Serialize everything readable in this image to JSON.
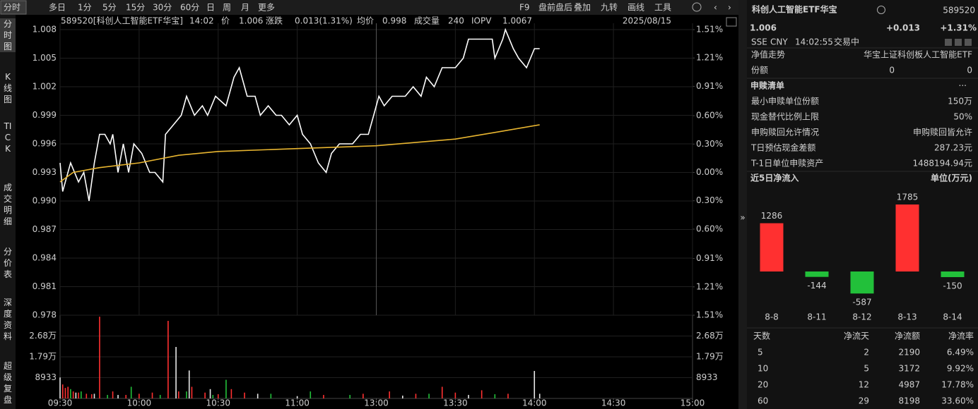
{
  "toolbar": {
    "tabs": [
      "分时",
      "多日",
      "1分",
      "5分",
      "15分",
      "30分",
      "60分",
      "日",
      "周",
      "月",
      "更多"
    ],
    "tools": [
      "F9",
      "盘前盘后",
      "叠加",
      "九转",
      "画线",
      "工具"
    ]
  },
  "sidebar": [
    "分时图",
    "K线图",
    "TICK",
    "成交明细",
    "分价表",
    "深度资料",
    "超级复盘"
  ],
  "quote_bar": {
    "code_name": "589520[科创人工智能ETF华宝]",
    "time": "14:02",
    "price_label": "价",
    "price": "1.006",
    "change_label": "涨跌",
    "change": "0.013(1.31%)",
    "avg_label": "均价",
    "avg": "0.998",
    "volume_label": "成交量",
    "volume": "240",
    "iopv_label": "IOPV",
    "iopv": "1.0067",
    "date": "2025/08/15"
  },
  "chart_data": [
    {
      "type": "line",
      "xlim": [
        0,
        240
      ],
      "ylim": [
        0.978,
        1.008
      ],
      "grid": true,
      "xticks": [
        {
          "value": 0,
          "label": "09:30"
        },
        {
          "value": 30,
          "label": "10:00"
        },
        {
          "value": 60,
          "label": "10:30"
        },
        {
          "value": 90,
          "label": "11:00"
        },
        {
          "value": 120,
          "label": "13:00"
        },
        {
          "value": 150,
          "label": "13:30"
        },
        {
          "value": 180,
          "label": "14:00"
        },
        {
          "value": 210,
          "label": "14:30"
        },
        {
          "value": 240,
          "label": "15:00"
        }
      ],
      "yticks": [
        1.008,
        1.005,
        1.002,
        0.999,
        0.996,
        0.993,
        {
          "value": 0.99,
          "label": "0.990"
        },
        0.987,
        0.984,
        0.981,
        0.978
      ],
      "y2lim": [
        -1.51,
        1.51
      ],
      "y2ticks": [
        {
          "value": 1.51,
          "label": "1.51%"
        },
        {
          "value": 1.21,
          "label": "1.21%"
        },
        {
          "value": 0.91,
          "label": "0.91%"
        },
        {
          "value": 0.6,
          "label": "0.60%"
        },
        {
          "value": 0.3,
          "label": "0.30%"
        },
        {
          "value": 0,
          "label": "0.00%"
        },
        {
          "value": -0.3,
          "label": "0.30%"
        },
        {
          "value": -0.6,
          "label": "0.60%"
        },
        {
          "value": -0.91,
          "label": "0.91%"
        },
        {
          "value": -1.21,
          "label": "1.21%"
        },
        {
          "value": -1.51,
          "label": "1.51%"
        }
      ],
      "up_color": "#ff4040",
      "down_color": "#2fc12f",
      "flat_color": "#bbbbbb",
      "series": [
        {
          "color": "#ffffff",
          "x": [
            0,
            1,
            4,
            7,
            9,
            11,
            13,
            15,
            17,
            19,
            20,
            22,
            24,
            26,
            28,
            31,
            34,
            36,
            39,
            40,
            43,
            46,
            48,
            51,
            54,
            56,
            59,
            63,
            66,
            68,
            71,
            74,
            76,
            79,
            82,
            84,
            87,
            90,
            92,
            95,
            98,
            101,
            103,
            106,
            109,
            111,
            114,
            117,
            119,
            121,
            123,
            126,
            129,
            131,
            134,
            137,
            139,
            142,
            145,
            147,
            150,
            153,
            155,
            158,
            161,
            164,
            165,
            168,
            169,
            172,
            174,
            177,
            180,
            182
          ],
          "values": [
            0.994,
            0.991,
            0.994,
            0.992,
            0.993,
            0.99,
            0.994,
            0.997,
            0.997,
            0.996,
            0.997,
            0.993,
            0.996,
            0.993,
            0.996,
            0.995,
            0.993,
            0.993,
            0.992,
            0.997,
            0.998,
            0.999,
            1.001,
            0.999,
            1.0,
            0.999,
            1.001,
            1.0,
            1.003,
            1.004,
            1.001,
            1.001,
            0.999,
            1.0,
            0.999,
            0.999,
            0.998,
            0.999,
            0.997,
            0.996,
            0.994,
            0.993,
            0.995,
            0.996,
            0.996,
            0.996,
            0.997,
            0.997,
            0.999,
            1.001,
            1.0,
            1.001,
            1.001,
            1.001,
            1.002,
            1.001,
            1.003,
            1.002,
            1.004,
            1.004,
            1.004,
            1.005,
            1.007,
            1.007,
            1.007,
            1.007,
            1.005,
            1.007,
            1.008,
            1.006,
            1.005,
            1.004,
            1.006,
            1.006
          ]
        },
        {
          "color": "#e8b530",
          "x": [
            0,
            5,
            15,
            30,
            45,
            60,
            90,
            120,
            150,
            165,
            182
          ],
          "values": [
            0.992,
            0.993,
            0.9935,
            0.994,
            0.9948,
            0.9952,
            0.9955,
            0.9958,
            0.9965,
            0.9972,
            0.998
          ]
        }
      ]
    },
    {
      "type": "bar",
      "xlim": [
        0,
        240
      ],
      "ylim": [
        0,
        35732
      ],
      "xticks": [
        {
          "value": 0,
          "label": "09:30"
        },
        {
          "value": 30,
          "label": "10:00"
        },
        {
          "value": 60,
          "label": "10:30"
        },
        {
          "value": 90,
          "label": "11:00"
        },
        {
          "value": 120,
          "label": "13:00"
        },
        {
          "value": 150,
          "label": "13:30"
        },
        {
          "value": 180,
          "label": "14:00"
        },
        {
          "value": 210,
          "label": "14:30"
        },
        {
          "value": 240,
          "label": "15:00"
        }
      ],
      "yticks": [
        {
          "value": 26799,
          "label": "2.68万"
        },
        {
          "value": 17866,
          "label": "1.79万"
        },
        8933
      ],
      "series": [
        {
          "color": "#ff3030",
          "x": [
            1,
            2,
            3,
            5,
            7,
            10,
            12,
            15,
            20,
            25,
            30,
            35,
            41,
            45,
            50,
            55,
            60,
            65,
            70,
            100,
            115,
            125,
            135,
            145,
            150,
            160,
            170
          ],
          "values": [
            6000,
            4500,
            5000,
            3000,
            2500,
            2000,
            1800,
            35100,
            3000,
            1500,
            2000,
            2500,
            33300,
            3000,
            5000,
            2500,
            1800,
            4000,
            2500,
            1500,
            2000,
            3000,
            2000,
            5000,
            2500,
            3500,
            2000
          ]
        },
        {
          "color": "#22c03a",
          "x": [
            4,
            8,
            18,
            27,
            38,
            48,
            58,
            63,
            80,
            95,
            110,
            140,
            165
          ],
          "values": [
            4000,
            3000,
            1500,
            5000,
            1500,
            3000,
            1500,
            8000,
            2000,
            3000,
            1500,
            2000,
            1800
          ]
        },
        {
          "color": "#e8e8e8",
          "x": [
            0,
            6,
            13,
            22,
            44,
            49,
            57,
            75,
            90,
            130,
            155,
            180,
            182
          ],
          "values": [
            9000,
            2500,
            2000,
            1500,
            22100,
            12000,
            4000,
            2000,
            1000,
            1200,
            1500,
            11800,
            2000
          ]
        }
      ]
    },
    {
      "type": "bar",
      "title": "近5日净流入",
      "unit": "单位(万元)",
      "categories": [
        "8-8",
        "8-11",
        "8-12",
        "8-13",
        "8-14"
      ],
      "values": [
        1286,
        -144,
        -587,
        1785,
        -150
      ],
      "up_color": "#ff3030",
      "down_color": "#22c03a"
    }
  ],
  "side_panel": {
    "title": "科创人工智能ETF华宝",
    "code": "589520",
    "price": "1.006",
    "change": "+0.013",
    "change_pct": "+1.31%",
    "exchange": "SSE",
    "currency": "CNY",
    "time": "14:02:55",
    "status": "交易中",
    "nav_label": "净值走势",
    "nav_value": "华宝上证科创板人工智能ETF",
    "share_label": "份额",
    "share_values": [
      "0",
      "0"
    ],
    "list_title": "申赎清单",
    "list_more": "···",
    "rows": [
      [
        "最小申赎单位份额",
        "150万"
      ],
      [
        "现金替代比例上限",
        "50%"
      ],
      [
        "申购赎回允许情况",
        "申购赎回皆允许"
      ],
      [
        "T日预估现金差额",
        "287.23元"
      ],
      [
        "T-1日单位申赎资产",
        "1488194.94元"
      ]
    ]
  },
  "flow_table": {
    "headers": [
      "天数",
      "净流天",
      "净流额",
      "净流率"
    ],
    "rows": [
      [
        "5",
        "2",
        "2190",
        "6.49%"
      ],
      [
        "10",
        "5",
        "3172",
        "9.92%"
      ],
      [
        "20",
        "12",
        "4987",
        "17.78%"
      ],
      [
        "60",
        "29",
        "8198",
        "33.60%"
      ]
    ]
  }
}
